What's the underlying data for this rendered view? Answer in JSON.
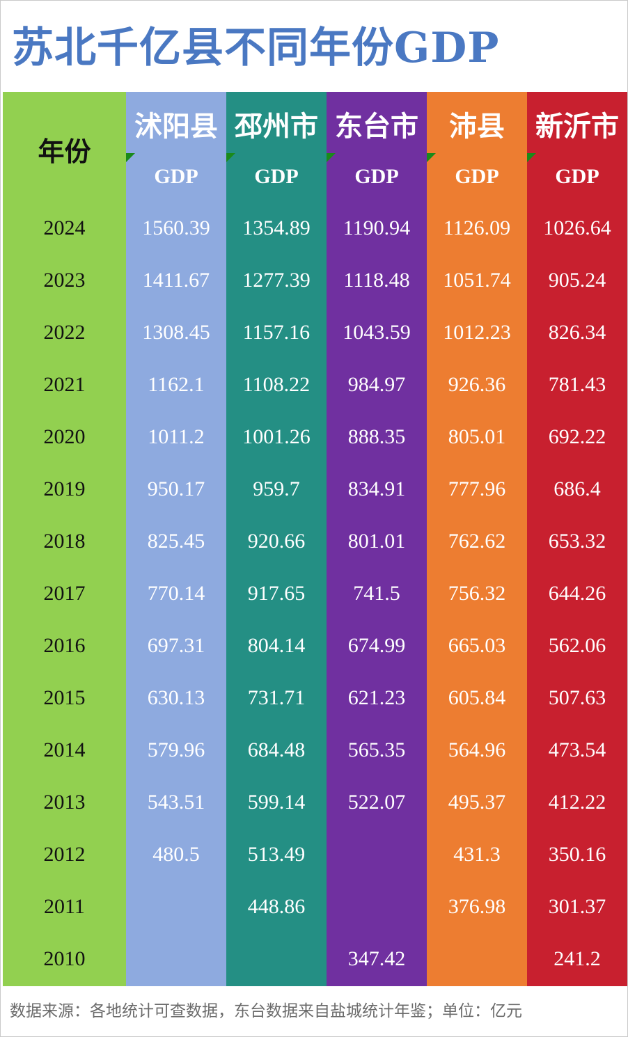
{
  "title": "苏北千亿县不同年份GDP",
  "footer": "数据来源：各地统计可查数据，东台数据来自盐城统计年鉴；单位：亿元",
  "chart_data": {
    "type": "table",
    "year_header": "年份",
    "years": [
      "2024",
      "2023",
      "2022",
      "2021",
      "2020",
      "2019",
      "2018",
      "2017",
      "2016",
      "2015",
      "2014",
      "2013",
      "2012",
      "2011",
      "2010"
    ],
    "series": [
      {
        "name": "沭阳县",
        "metric": "GDP",
        "color": "#8eaadf",
        "values": [
          "1560.39",
          "1411.67",
          "1308.45",
          "1162.1",
          "1011.2",
          "950.17",
          "825.45",
          "770.14",
          "697.31",
          "630.13",
          "579.96",
          "543.51",
          "480.5",
          "",
          ""
        ]
      },
      {
        "name": "邳州市",
        "metric": "GDP",
        "color": "#248f84",
        "values": [
          "1354.89",
          "1277.39",
          "1157.16",
          "1108.22",
          "1001.26",
          "959.7",
          "920.66",
          "917.65",
          "804.14",
          "731.71",
          "684.48",
          "599.14",
          "513.49",
          "448.86",
          ""
        ]
      },
      {
        "name": "东台市",
        "metric": "GDP",
        "color": "#7030a0",
        "values": [
          "1190.94",
          "1118.48",
          "1043.59",
          "984.97",
          "888.35",
          "834.91",
          "801.01",
          "741.5",
          "674.99",
          "621.23",
          "565.35",
          "522.07",
          "",
          "",
          "347.42"
        ]
      },
      {
        "name": "沛县",
        "metric": "GDP",
        "color": "#ed7d31",
        "values": [
          "1126.09",
          "1051.74",
          "1012.23",
          "926.36",
          "805.01",
          "777.96",
          "762.62",
          "756.32",
          "665.03",
          "605.84",
          "564.96",
          "495.37",
          "431.3",
          "376.98",
          ""
        ]
      },
      {
        "name": "新沂市",
        "metric": "GDP",
        "color": "#c8202f",
        "values": [
          "1026.64",
          "905.24",
          "826.34",
          "781.43",
          "692.22",
          "686.4",
          "653.32",
          "644.26",
          "562.06",
          "507.63",
          "473.54",
          "412.22",
          "350.16",
          "301.37",
          "241.2"
        ]
      }
    ],
    "unit": "亿元"
  }
}
